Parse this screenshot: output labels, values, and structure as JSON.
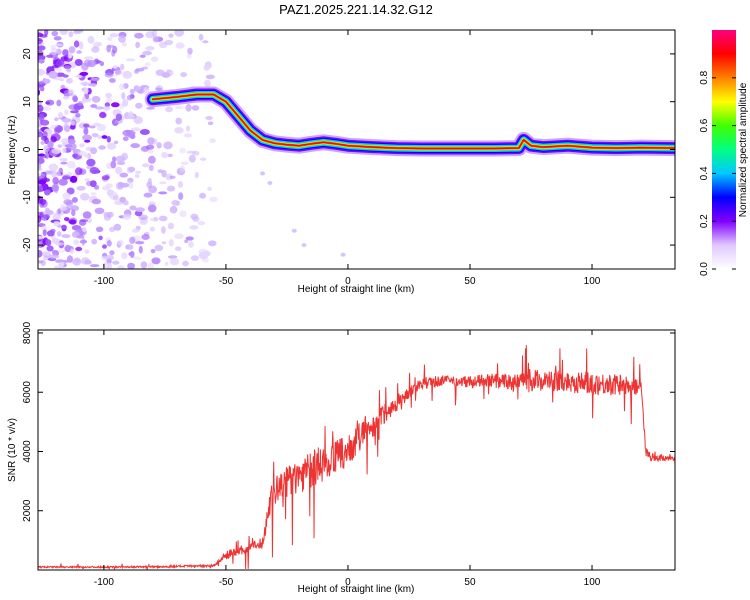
{
  "figure": {
    "title": "PAZ1.2025.221.14.32.G12"
  },
  "chart_data": [
    {
      "type": "heatmap",
      "title": "PAZ1.2025.221.14.32.G12",
      "xlabel": "Height of straight line (km)",
      "ylabel": "Frequency (Hz)",
      "xlim": [
        -127,
        134
      ],
      "ylim": [
        -25,
        25
      ],
      "x_ticks": [
        "-100",
        "-50",
        "0",
        "50",
        "100"
      ],
      "x_tick_values": [
        -100,
        -50,
        0,
        50,
        100
      ],
      "y_ticks": [
        "-20",
        "-10",
        "0",
        "10",
        "20"
      ],
      "y_tick_values": [
        -20,
        -10,
        0,
        10,
        20
      ],
      "colorbar": {
        "label": "Normalized spectral amplitude",
        "range": [
          0,
          1
        ],
        "ticks": [
          "0.0",
          "0.2",
          "0.4",
          "0.6",
          "0.8"
        ],
        "tick_values": [
          0.0,
          0.2,
          0.4,
          0.6,
          0.8
        ],
        "colors": [
          "#ffffff",
          "#e0c8ff",
          "#8000ff",
          "#0000ff",
          "#00c8ff",
          "#00ff80",
          "#40ff00",
          "#ffff00",
          "#ff8000",
          "#ff0000",
          "#ff0080"
        ]
      },
      "ridge": {
        "x": [
          -80,
          -70,
          -62,
          -55,
          -50,
          -45,
          -40,
          -35,
          -30,
          -25,
          -20,
          -15,
          -10,
          -5,
          0,
          10,
          20,
          30,
          40,
          50,
          60,
          70,
          72,
          75,
          80,
          90,
          100,
          110,
          120,
          134
        ],
        "frequency": [
          10.5,
          11,
          11.5,
          11.5,
          10,
          7,
          4,
          2,
          1.3,
          1,
          0.8,
          1.2,
          1.5,
          1.2,
          0.8,
          0.5,
          0.3,
          0.2,
          0.2,
          0.2,
          0.2,
          0.3,
          2,
          0.8,
          0.5,
          0.8,
          0.4,
          0.3,
          0.4,
          0.3
        ]
      },
      "noise_region_x": [
        -127,
        -55
      ]
    },
    {
      "type": "line",
      "xlabel": "Height of straight line (km)",
      "ylabel": "SNR (10 * v/v)",
      "xlim": [
        -127,
        134
      ],
      "ylim": [
        0,
        8100
      ],
      "x_ticks": [
        "-100",
        "-50",
        "0",
        "50",
        "100"
      ],
      "x_tick_values": [
        -100,
        -50,
        0,
        50,
        100
      ],
      "y_ticks": [
        "2000",
        "4000",
        "6000",
        "8000"
      ],
      "y_tick_values": [
        2000,
        4000,
        6000,
        8000
      ],
      "series": [
        {
          "color": "#ee3333",
          "x": [
            -127,
            -100,
            -75,
            -55,
            -50,
            -45,
            -40,
            -35,
            -32,
            -30,
            -25,
            -20,
            -15,
            -10,
            -5,
            0,
            5,
            10,
            15,
            20,
            25,
            30,
            40,
            50,
            60,
            70,
            75,
            80,
            90,
            100,
            110,
            118,
            120,
            122,
            125,
            130,
            134
          ],
          "values": [
            100,
            100,
            110,
            150,
            500,
            650,
            750,
            900,
            2300,
            2600,
            3000,
            3200,
            3400,
            3600,
            3800,
            4000,
            4500,
            4900,
            5300,
            5600,
            6000,
            6300,
            6400,
            6350,
            6400,
            6300,
            6400,
            6400,
            6350,
            6300,
            6250,
            6200,
            6300,
            4000,
            3800,
            3800,
            3800
          ],
          "noise_amplitude": [
            50,
            50,
            60,
            80,
            250,
            300,
            350,
            400,
            1000,
            1100,
            1200,
            1200,
            1300,
            1300,
            1200,
            1000,
            1000,
            900,
            700,
            500,
            400,
            400,
            350,
            400,
            500,
            600,
            800,
            700,
            700,
            800,
            700,
            600,
            400,
            300,
            250,
            250,
            250
          ]
        }
      ]
    }
  ]
}
